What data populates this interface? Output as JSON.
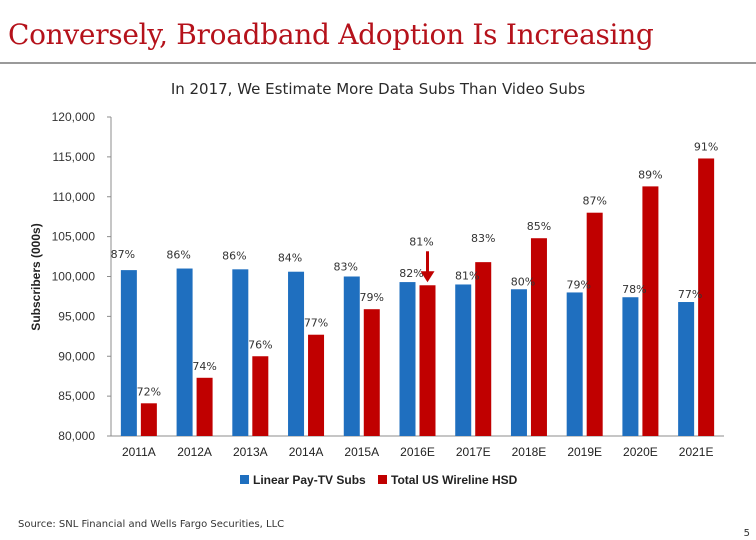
{
  "slide": {
    "title": "Conversely, Broadband Adoption Is Increasing",
    "subtitle": "In 2017, We Estimate More Data Subs Than Video Subs",
    "source": "Source: SNL Financial and Wells Fargo Securities, LLC",
    "page_number": "5"
  },
  "chart_data": {
    "type": "bar",
    "title": "In 2017, We Estimate More Data Subs Than Video Subs",
    "xlabel": "",
    "ylabel": "Subscribers (000s)",
    "ylim": [
      80000,
      120000
    ],
    "yticks": [
      80000,
      85000,
      90000,
      95000,
      100000,
      105000,
      110000,
      115000,
      120000
    ],
    "ytick_labels": [
      "80,000",
      "85,000",
      "90,000",
      "95,000",
      "100,000",
      "105,000",
      "110,000",
      "115,000",
      "120,000"
    ],
    "categories": [
      "2011A",
      "2012A",
      "2013A",
      "2014A",
      "2015A",
      "2016E",
      "2017E",
      "2018E",
      "2019E",
      "2020E",
      "2021E"
    ],
    "series": [
      {
        "name": "Linear Pay-TV Subs",
        "color": "#1f6fbf",
        "values": [
          100800,
          101000,
          100900,
          100600,
          100000,
          99300,
          99000,
          98400,
          98000,
          97400,
          96800
        ],
        "labels": [
          "87%",
          "86%",
          "86%",
          "84%",
          "83%",
          "82%",
          "81%",
          "80%",
          "79%",
          "78%",
          "77%"
        ]
      },
      {
        "name": "Total US Wireline HSD",
        "color": "#c00000",
        "values": [
          84100,
          87300,
          90000,
          92700,
          95900,
          98900,
          101800,
          104800,
          108000,
          111300,
          114800
        ],
        "labels": [
          "72%",
          "74%",
          "76%",
          "77%",
          "79%",
          "81%",
          "83%",
          "85%",
          "87%",
          "89%",
          "91%"
        ]
      }
    ],
    "annotations": [
      {
        "type": "arrow",
        "category": "2016E",
        "series": "Total US Wireline HSD",
        "color": "#c00000"
      }
    ],
    "legend": "bottom",
    "grid": false
  }
}
